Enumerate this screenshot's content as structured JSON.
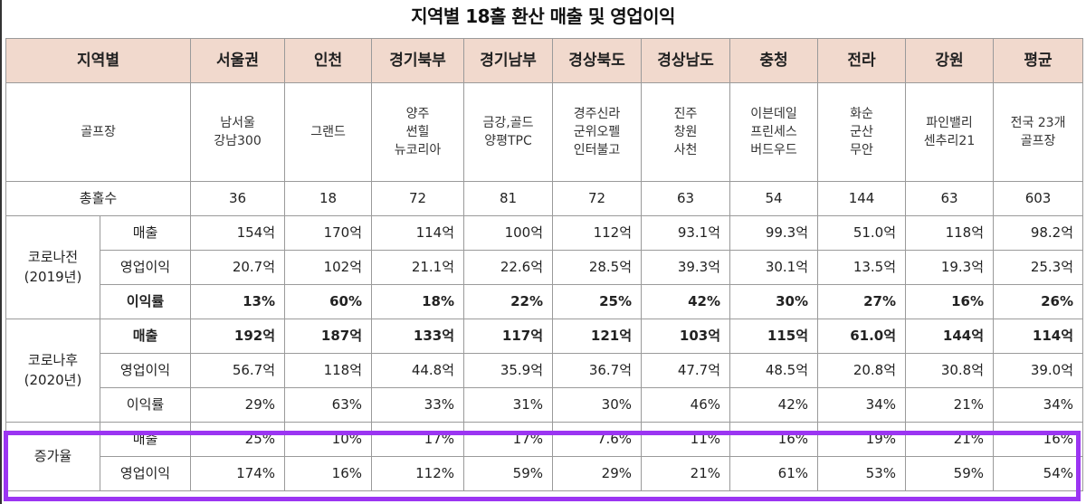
{
  "title": "지역별 18홀 환산 매출 및 영업이익",
  "header": {
    "region_label": "지역별",
    "regions": [
      "서울권",
      "인천",
      "경기북부",
      "경기남부",
      "경상북도",
      "경상남도",
      "충청",
      "전라",
      "강원",
      "평균"
    ]
  },
  "golf": {
    "label": "골프장",
    "courses": [
      [
        "남서울",
        "강남300"
      ],
      [
        "그랜드"
      ],
      [
        "양주",
        "썬힐",
        "뉴코리아"
      ],
      [
        "금강,골드",
        "양평TPC"
      ],
      [
        "경주신라",
        "군위오펠",
        "인터불고"
      ],
      [
        "진주",
        "창원",
        "사천"
      ],
      [
        "이븐데일",
        "프린세스",
        "버드우드"
      ],
      [
        "화순",
        "군산",
        "무안"
      ],
      [
        "파인밸리",
        "센추리21"
      ],
      [
        "전국 23개",
        "골프장"
      ]
    ]
  },
  "holes": {
    "label": "총홀수",
    "values": [
      "36",
      "18",
      "72",
      "81",
      "72",
      "63",
      "54",
      "144",
      "63",
      "603"
    ]
  },
  "pre": {
    "group": [
      "코로나전",
      "(2019년)"
    ],
    "rows": [
      {
        "label": "매출",
        "values": [
          "154억",
          "170억",
          "114억",
          "100억",
          "112억",
          "93.1억",
          "99.3억",
          "51.0억",
          "118억",
          "98.2억"
        ]
      },
      {
        "label": "영업이익",
        "values": [
          "20.7억",
          "102억",
          "21.1억",
          "22.6억",
          "28.5억",
          "39.3억",
          "30.1억",
          "13.5억",
          "19.3억",
          "25.3억"
        ]
      },
      {
        "label": "이익률",
        "values": [
          "13%",
          "60%",
          "18%",
          "22%",
          "25%",
          "42%",
          "30%",
          "27%",
          "16%",
          "26%"
        ]
      }
    ]
  },
  "post": {
    "group": [
      "코로나후",
      "(2020년)"
    ],
    "rows": [
      {
        "label": "매출",
        "values": [
          "192억",
          "187억",
          "133억",
          "117억",
          "121억",
          "103억",
          "115억",
          "61.0억",
          "144억",
          "114억"
        ]
      },
      {
        "label": "영업이익",
        "values": [
          "56.7억",
          "118억",
          "44.8억",
          "35.9억",
          "36.7억",
          "47.7억",
          "48.5억",
          "20.8억",
          "30.8억",
          "39.0억"
        ]
      },
      {
        "label": "이익률",
        "values": [
          "29%",
          "63%",
          "33%",
          "31%",
          "30%",
          "46%",
          "42%",
          "34%",
          "21%",
          "34%"
        ]
      }
    ]
  },
  "growth": {
    "group": "증가율",
    "rows": [
      {
        "label": "매출",
        "values": [
          "25%",
          "10%",
          "17%",
          "17%",
          "7.6%",
          "11%",
          "16%",
          "19%",
          "21%",
          "16%"
        ]
      },
      {
        "label": "영업이익",
        "values": [
          "174%",
          "16%",
          "112%",
          "59%",
          "29%",
          "21%",
          "61%",
          "53%",
          "59%",
          "54%"
        ]
      }
    ]
  },
  "highlight_color": "#9b35f2",
  "header_bg": "#f1d9cd"
}
